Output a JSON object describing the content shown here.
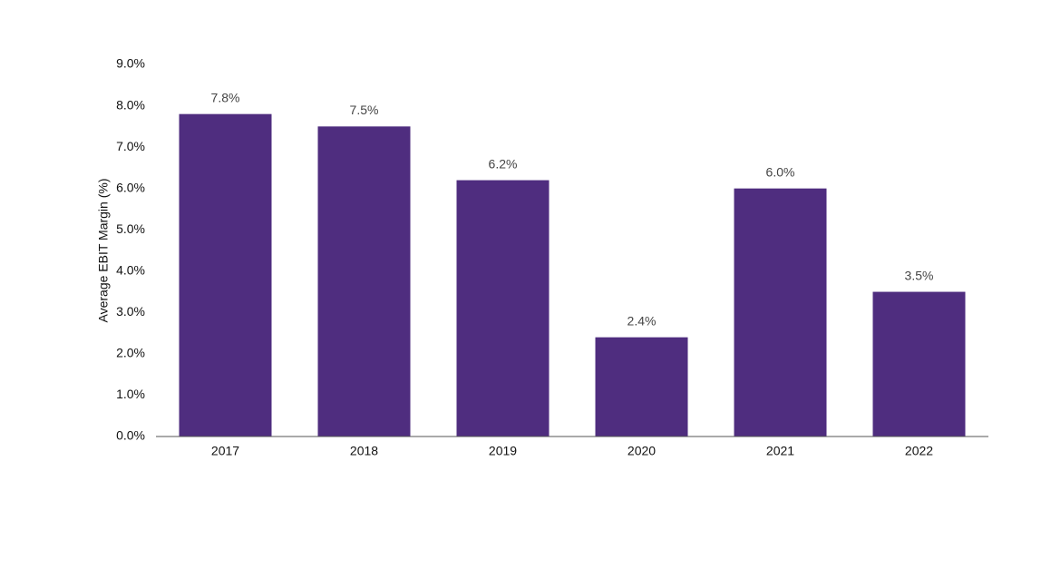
{
  "chart_data": {
    "type": "bar",
    "y_label": "Average EBIT Margin (%)",
    "categories": [
      "2017",
      "2018",
      "2019",
      "2020",
      "2021",
      "2022"
    ],
    "values": [
      7.8,
      7.5,
      6.2,
      2.4,
      6.0,
      3.5
    ],
    "value_labels": [
      "7.8%",
      "7.5%",
      "6.2%",
      "2.4%",
      "6.0%",
      "3.5%"
    ],
    "color": "#4f2d7f",
    "ylim": [
      0,
      9
    ],
    "yticks": [
      {
        "value": 0,
        "label": "0.0%"
      },
      {
        "value": 1,
        "label": "1.0%"
      },
      {
        "value": 2,
        "label": "2.0%"
      },
      {
        "value": 3,
        "label": "3.0%"
      },
      {
        "value": 4,
        "label": "4.0%"
      },
      {
        "value": 5,
        "label": "5.0%"
      },
      {
        "value": 6,
        "label": "6.0%"
      },
      {
        "value": 7,
        "label": "7.0%"
      },
      {
        "value": 8,
        "label": "8.0%"
      },
      {
        "value": 9,
        "label": "9.0%"
      }
    ],
    "grid": false
  }
}
